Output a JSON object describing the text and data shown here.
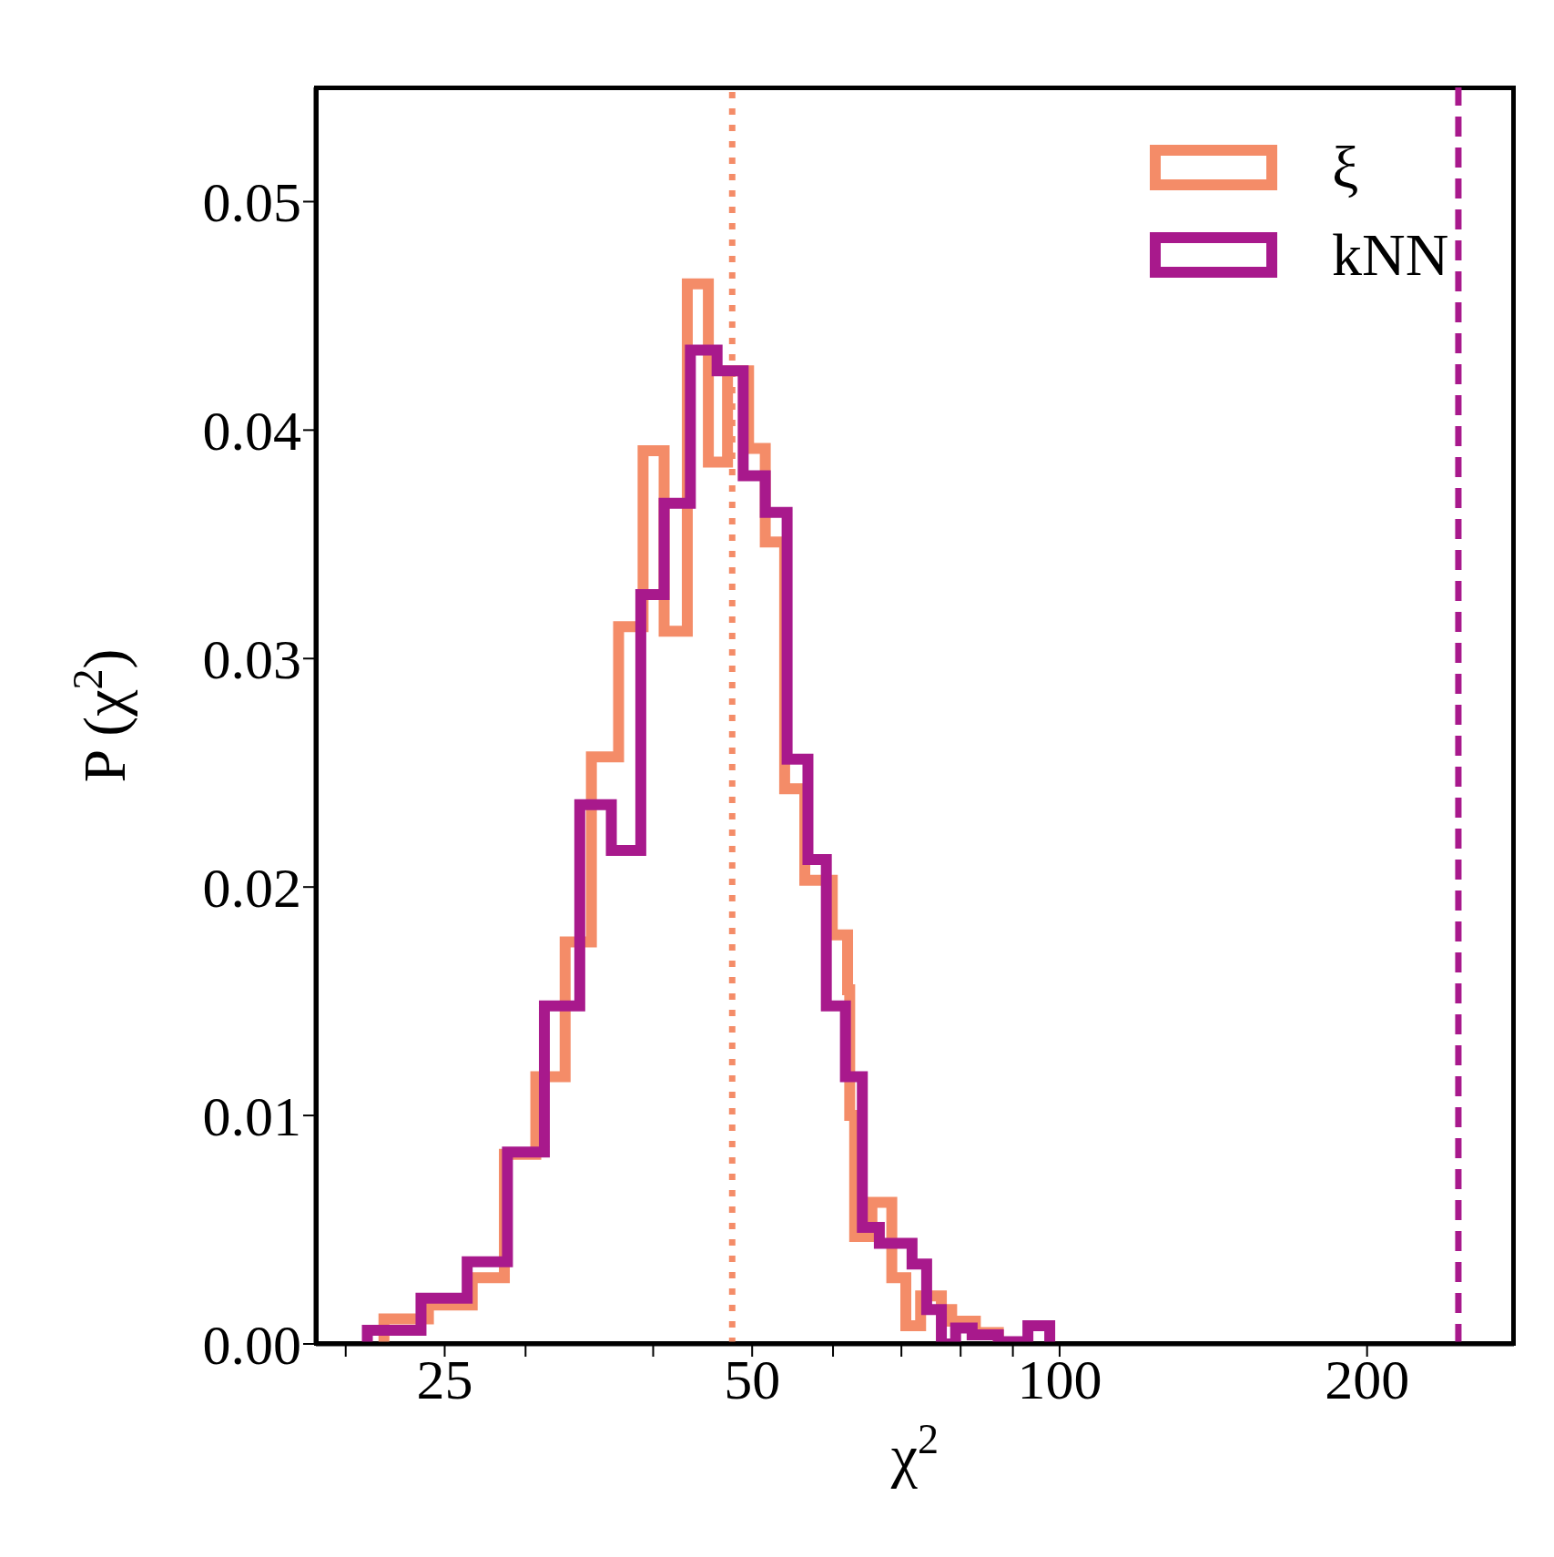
{
  "chart_data": {
    "type": "step",
    "xlabel": "χ$^{2}$",
    "ylabel": "P (χ$^{2}$)",
    "log": "x",
    "xlim": [
      18.7,
      278.5
    ],
    "xticks": [
      {
        "value": 20,
        "label": null
      },
      {
        "value": 25,
        "label": "25"
      },
      {
        "value": 30,
        "label": null
      },
      {
        "value": 40,
        "label": null
      },
      {
        "value": 50,
        "label": "50"
      },
      {
        "value": 60,
        "label": null
      },
      {
        "value": 70,
        "label": null
      },
      {
        "value": 80,
        "label": null
      },
      {
        "value": 90,
        "label": null
      },
      {
        "value": 100,
        "label": "100"
      },
      {
        "value": 200,
        "label": "200"
      }
    ],
    "ylim": [
      0,
      0.055
    ],
    "yticks": [
      {
        "value": 0,
        "label": "0.00"
      },
      {
        "value": 0.01,
        "label": "0.01"
      },
      {
        "value": 0.02,
        "label": "0.02"
      },
      {
        "value": 0.03,
        "label": "0.03"
      },
      {
        "value": 0.04,
        "label": "0.04"
      },
      {
        "value": 0.05,
        "label": "0.05"
      }
    ],
    "grid": false,
    "legend": "top right",
    "series": [
      {
        "name": "ξ",
        "color": "#f48c68",
        "x": [
          21.8,
          21.8,
          24.1,
          26.6,
          28.6,
          30.7,
          32.8,
          34.8,
          37.0,
          39.1,
          41.0,
          43.2,
          45.3,
          47.3,
          49.6,
          51.5,
          53.8,
          56.3,
          59.9,
          62.0,
          62.3,
          63.0,
          65.5,
          68.5,
          70.7,
          73.1,
          76.6,
          78.4,
          82.7,
          87.1
        ],
        "values": [
          0,
          0.0011,
          0.0017,
          0.0029,
          0.0083,
          0.0117,
          0.0176,
          0.0257,
          0.0314,
          0.0391,
          0.0312,
          0.0464,
          0.0386,
          0.0426,
          0.0392,
          0.0351,
          0.0243,
          0.0203,
          0.0179,
          0.0155,
          0.01,
          0.0047,
          0.0062,
          0.0029,
          0.0008,
          0.0021,
          0.0015,
          0.001,
          0.0005,
          0
        ]
      },
      {
        "name": "kNN",
        "color": "#a8198c",
        "x": [
          21.0,
          21.0,
          23.7,
          26.3,
          28.8,
          31.3,
          33.9,
          36.4,
          38.9,
          41.0,
          43.5,
          46.2,
          49.0,
          51.5,
          54.1,
          56.7,
          59.1,
          61.7,
          64.1,
          66.6,
          71.7,
          74.1,
          76.6,
          79.1,
          82.1,
          87.1,
          93.1,
          97.8
        ],
        "values": [
          0,
          0.0006,
          0.002,
          0.0036,
          0.0084,
          0.0148,
          0.0236,
          0.0216,
          0.0328,
          0.0368,
          0.0435,
          0.0426,
          0.038,
          0.0364,
          0.0256,
          0.0212,
          0.0148,
          0.0117,
          0.0051,
          0.0044,
          0.0035,
          0.0015,
          0,
          0.0007,
          0.0004,
          0.0001,
          0.0008,
          0
        ]
      }
    ],
    "ref_lines": [
      {
        "axis": "x",
        "value": 47.8,
        "color": "#f48c68",
        "line_style": "dotted"
      },
      {
        "axis": "x",
        "value": 245.7,
        "color": "#a8198c",
        "line_style": "dashed"
      }
    ]
  }
}
